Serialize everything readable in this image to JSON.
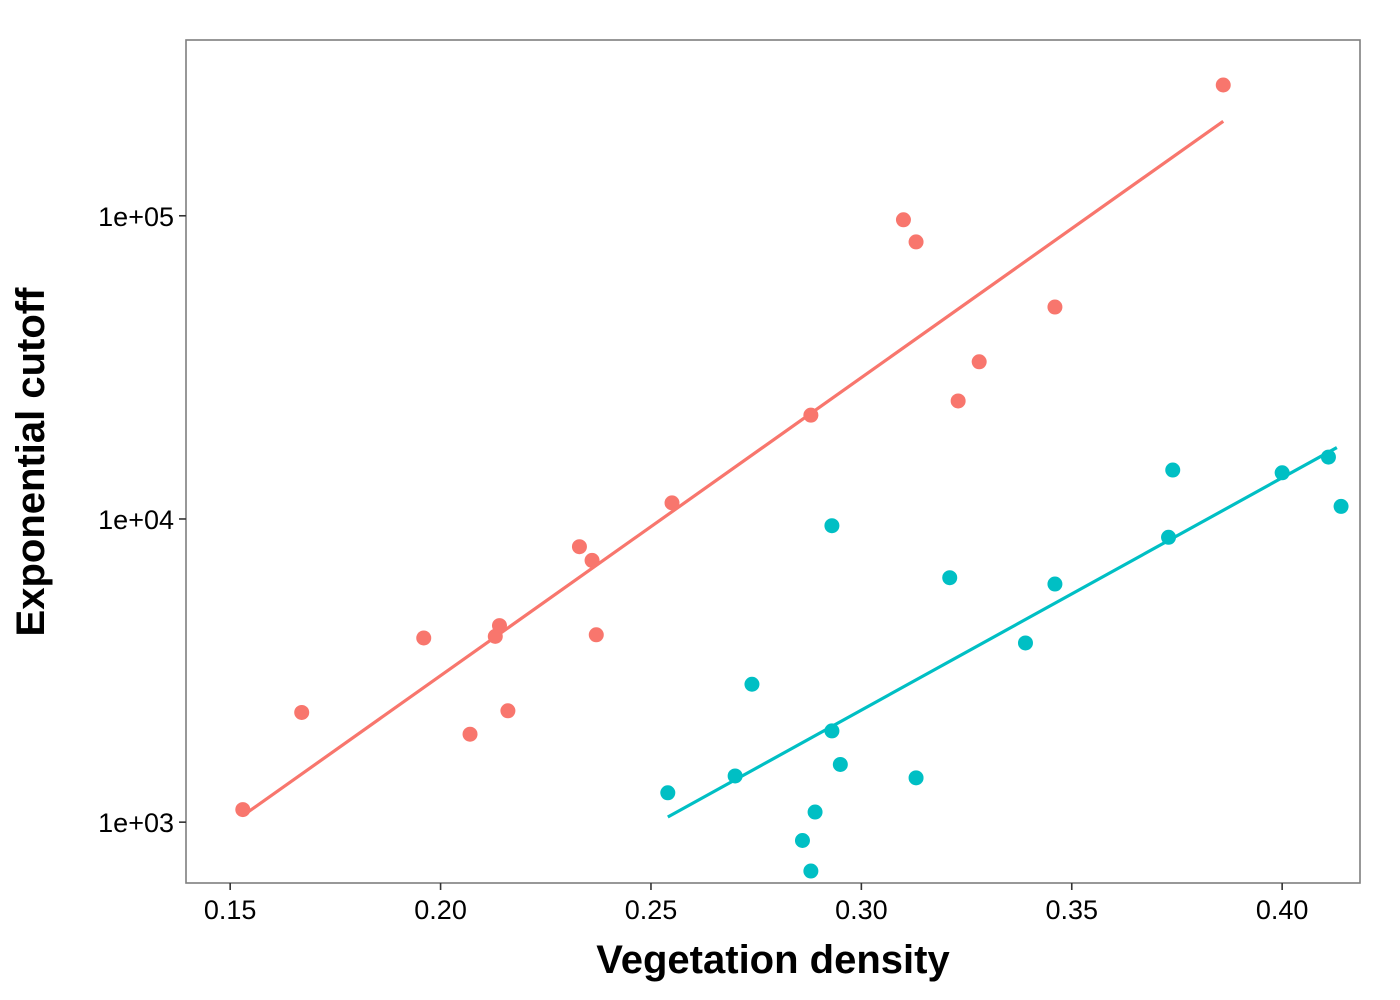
{
  "chart_data": {
    "type": "scatter",
    "title": "",
    "xlabel": "Vegetation density",
    "ylabel": "Exponential cutoff",
    "xlim": [
      0.1395,
      0.4185
    ],
    "ylim": [
      630,
      380000
    ],
    "y_scale": "log10",
    "x_ticks": [
      0.15,
      0.2,
      0.25,
      0.3,
      0.35,
      0.4
    ],
    "x_tick_labels": [
      "0.15",
      "0.20",
      "0.25",
      "0.30",
      "0.35",
      "0.40"
    ],
    "y_ticks": [
      1000,
      10000,
      100000
    ],
    "y_tick_labels": [
      "1e+03",
      "1e+04",
      "1e+05"
    ],
    "grid": false,
    "legend": "none",
    "series": [
      {
        "color": "#F8766D",
        "x": [
          0.153,
          0.167,
          0.196,
          0.207,
          0.213,
          0.214,
          0.216,
          0.233,
          0.236,
          0.237,
          0.255,
          0.288,
          0.31,
          0.313,
          0.323,
          0.328,
          0.346,
          0.386
        ],
        "y": [
          1100,
          2300,
          4050,
          1950,
          4100,
          4450,
          2330,
          8100,
          7300,
          4150,
          11300,
          22000,
          97000,
          82000,
          24500,
          33000,
          50000,
          270000
        ],
        "fit": {
          "x": [
            0.153,
            0.386
          ],
          "y": [
            1050,
            205000
          ]
        }
      },
      {
        "color": "#00BFC4",
        "x": [
          0.254,
          0.27,
          0.274,
          0.286,
          0.288,
          0.289,
          0.293,
          0.293,
          0.295,
          0.313,
          0.321,
          0.339,
          0.346,
          0.373,
          0.374,
          0.4,
          0.411,
          0.414
        ],
        "y": [
          1250,
          1420,
          2850,
          870,
          690,
          1080,
          2000,
          9500,
          1550,
          1400,
          6400,
          3900,
          6100,
          8700,
          14500,
          14200,
          16000,
          11000
        ],
        "fit": {
          "x": [
            0.254,
            0.413
          ],
          "y": [
            1040,
            17200
          ]
        }
      }
    ]
  }
}
